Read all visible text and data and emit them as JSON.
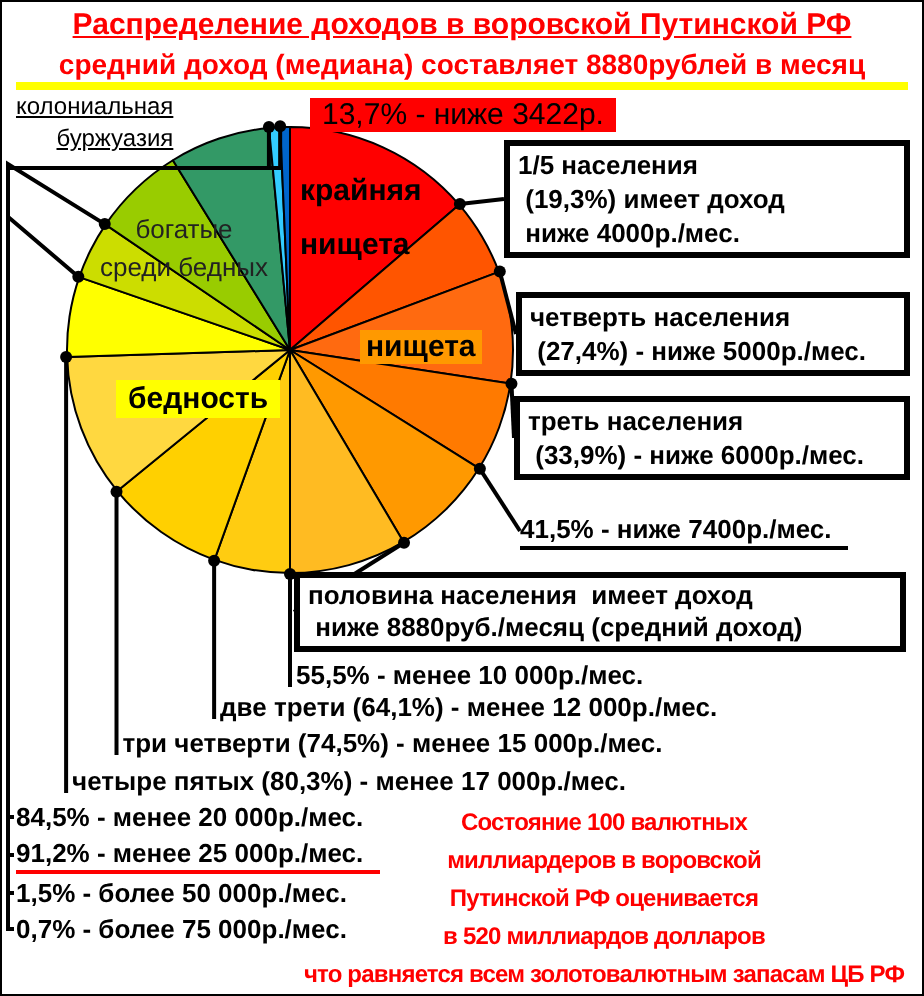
{
  "chart_data": {
    "type": "pie",
    "title": "Распределение доходов в воровской Путинской РФ",
    "subtitle": "средний доход (медиана) составляет 8880рублей в месяц",
    "categories": [
      null,
      null,
      null,
      null,
      null,
      null,
      null,
      null,
      null,
      null,
      null,
      null,
      null,
      null,
      null
    ],
    "values": [
      13.7,
      5.6,
      8.1,
      6.5,
      7.6,
      8.5,
      5.5,
      8.6,
      10.4,
      5.8,
      4.2,
      6.7,
      7.3,
      0.8,
      0.7
    ],
    "colors": [
      "#ff0000",
      "#ff5500",
      "#ff6a10",
      "#ff7a00",
      "#ff9900",
      "#ffbb22",
      "#ffcc11",
      "#ffd000",
      "#ffd840",
      "#ffff00",
      "#ccdd00",
      "#99cc00",
      "#339966",
      "#33ccff",
      "#0066cc"
    ],
    "legend": false,
    "annotations": [
      "13,7% - ниже 3422р.",
      "1/5 населения\n (19,3%) имеет доход\n ниже 4000р./мес.",
      "четверть населения\n (27,4%) - ниже 5000р./мес.",
      "треть населения\n (33,9%) - ниже 6000р./мес.",
      "41,5% - ниже 7400р./мес.",
      "половина населения  имеет доход\n ниже 8880руб./месяц (средний доход)",
      "55,5% - менее 10 000р./мес.",
      "две трети (64,1%) - менее 12 000р./мес.",
      "три четверти (74,5%) - менее 15 000р./мес.",
      "четыре пятых (80,3%) - менее 17 000р./мес.",
      "84,5% - менее 20 000р./мес.",
      "91,2% - менее 25 000р./мес.",
      "1,5% - более 50 000р./мес.",
      "0,7% - более 75 000р./мес.",
      "крайняя\nнищета",
      "нищета",
      "бедность",
      "богатые\nсреди бедных",
      "колониальная\nбуржуазия",
      "Состояние 100 валютных\nмиллиардеров в воровской\nПутинской РФ оценивается\nв 520 миллиардов долларов\nчто равняется всем золотовалютным запасам ЦБ РФ"
    ]
  }
}
